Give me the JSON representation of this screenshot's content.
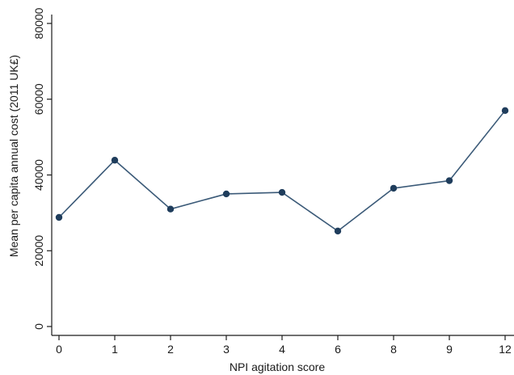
{
  "chart_data": {
    "type": "line",
    "title": "",
    "xlabel": "NPI agitation score",
    "ylabel": "Mean per capita annual cost (2011 UK£)",
    "categories": [
      "0",
      "1",
      "2",
      "3",
      "4",
      "6",
      "8",
      "9",
      "12"
    ],
    "series": [
      {
        "values": [
          28800,
          43900,
          31000,
          35000,
          35400,
          25200,
          36500,
          38500,
          57000
        ]
      }
    ],
    "ylim": [
      0,
      80000
    ],
    "yticks": [
      0,
      20000,
      40000,
      60000,
      80000
    ],
    "grid": false,
    "colors": {
      "line": "#3b5a78",
      "marker": "#1f3d5c",
      "axis": "#1a1a1a"
    }
  }
}
